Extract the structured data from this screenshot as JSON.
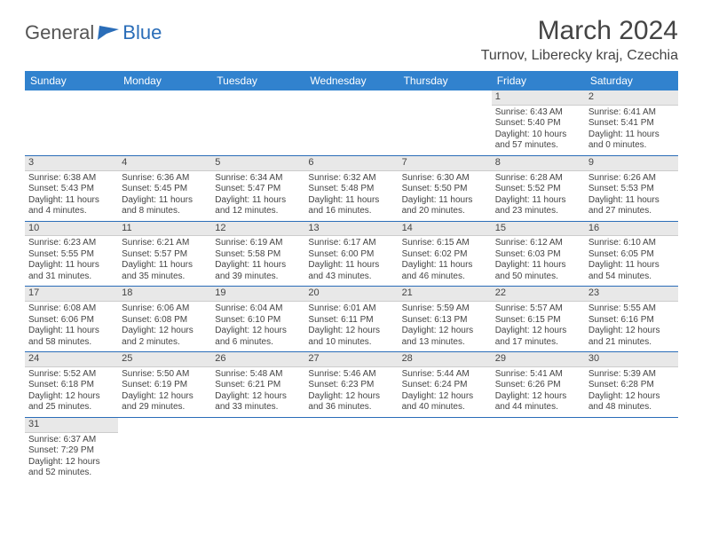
{
  "logo": {
    "general": "General",
    "blue": "Blue"
  },
  "title": "March 2024",
  "location": "Turnov, Liberecky kraj, Czechia",
  "headers": [
    "Sunday",
    "Monday",
    "Tuesday",
    "Wednesday",
    "Thursday",
    "Friday",
    "Saturday"
  ],
  "colors": {
    "header_bg": "#3182ce",
    "accent": "#2a6db8",
    "daynum_bg": "#e8e8e8"
  },
  "weeks": [
    [
      null,
      null,
      null,
      null,
      null,
      {
        "n": "1",
        "sr": "Sunrise: 6:43 AM",
        "ss": "Sunset: 5:40 PM",
        "dl": "Daylight: 10 hours and 57 minutes."
      },
      {
        "n": "2",
        "sr": "Sunrise: 6:41 AM",
        "ss": "Sunset: 5:41 PM",
        "dl": "Daylight: 11 hours and 0 minutes."
      }
    ],
    [
      {
        "n": "3",
        "sr": "Sunrise: 6:38 AM",
        "ss": "Sunset: 5:43 PM",
        "dl": "Daylight: 11 hours and 4 minutes."
      },
      {
        "n": "4",
        "sr": "Sunrise: 6:36 AM",
        "ss": "Sunset: 5:45 PM",
        "dl": "Daylight: 11 hours and 8 minutes."
      },
      {
        "n": "5",
        "sr": "Sunrise: 6:34 AM",
        "ss": "Sunset: 5:47 PM",
        "dl": "Daylight: 11 hours and 12 minutes."
      },
      {
        "n": "6",
        "sr": "Sunrise: 6:32 AM",
        "ss": "Sunset: 5:48 PM",
        "dl": "Daylight: 11 hours and 16 minutes."
      },
      {
        "n": "7",
        "sr": "Sunrise: 6:30 AM",
        "ss": "Sunset: 5:50 PM",
        "dl": "Daylight: 11 hours and 20 minutes."
      },
      {
        "n": "8",
        "sr": "Sunrise: 6:28 AM",
        "ss": "Sunset: 5:52 PM",
        "dl": "Daylight: 11 hours and 23 minutes."
      },
      {
        "n": "9",
        "sr": "Sunrise: 6:26 AM",
        "ss": "Sunset: 5:53 PM",
        "dl": "Daylight: 11 hours and 27 minutes."
      }
    ],
    [
      {
        "n": "10",
        "sr": "Sunrise: 6:23 AM",
        "ss": "Sunset: 5:55 PM",
        "dl": "Daylight: 11 hours and 31 minutes."
      },
      {
        "n": "11",
        "sr": "Sunrise: 6:21 AM",
        "ss": "Sunset: 5:57 PM",
        "dl": "Daylight: 11 hours and 35 minutes."
      },
      {
        "n": "12",
        "sr": "Sunrise: 6:19 AM",
        "ss": "Sunset: 5:58 PM",
        "dl": "Daylight: 11 hours and 39 minutes."
      },
      {
        "n": "13",
        "sr": "Sunrise: 6:17 AM",
        "ss": "Sunset: 6:00 PM",
        "dl": "Daylight: 11 hours and 43 minutes."
      },
      {
        "n": "14",
        "sr": "Sunrise: 6:15 AM",
        "ss": "Sunset: 6:02 PM",
        "dl": "Daylight: 11 hours and 46 minutes."
      },
      {
        "n": "15",
        "sr": "Sunrise: 6:12 AM",
        "ss": "Sunset: 6:03 PM",
        "dl": "Daylight: 11 hours and 50 minutes."
      },
      {
        "n": "16",
        "sr": "Sunrise: 6:10 AM",
        "ss": "Sunset: 6:05 PM",
        "dl": "Daylight: 11 hours and 54 minutes."
      }
    ],
    [
      {
        "n": "17",
        "sr": "Sunrise: 6:08 AM",
        "ss": "Sunset: 6:06 PM",
        "dl": "Daylight: 11 hours and 58 minutes."
      },
      {
        "n": "18",
        "sr": "Sunrise: 6:06 AM",
        "ss": "Sunset: 6:08 PM",
        "dl": "Daylight: 12 hours and 2 minutes."
      },
      {
        "n": "19",
        "sr": "Sunrise: 6:04 AM",
        "ss": "Sunset: 6:10 PM",
        "dl": "Daylight: 12 hours and 6 minutes."
      },
      {
        "n": "20",
        "sr": "Sunrise: 6:01 AM",
        "ss": "Sunset: 6:11 PM",
        "dl": "Daylight: 12 hours and 10 minutes."
      },
      {
        "n": "21",
        "sr": "Sunrise: 5:59 AM",
        "ss": "Sunset: 6:13 PM",
        "dl": "Daylight: 12 hours and 13 minutes."
      },
      {
        "n": "22",
        "sr": "Sunrise: 5:57 AM",
        "ss": "Sunset: 6:15 PM",
        "dl": "Daylight: 12 hours and 17 minutes."
      },
      {
        "n": "23",
        "sr": "Sunrise: 5:55 AM",
        "ss": "Sunset: 6:16 PM",
        "dl": "Daylight: 12 hours and 21 minutes."
      }
    ],
    [
      {
        "n": "24",
        "sr": "Sunrise: 5:52 AM",
        "ss": "Sunset: 6:18 PM",
        "dl": "Daylight: 12 hours and 25 minutes."
      },
      {
        "n": "25",
        "sr": "Sunrise: 5:50 AM",
        "ss": "Sunset: 6:19 PM",
        "dl": "Daylight: 12 hours and 29 minutes."
      },
      {
        "n": "26",
        "sr": "Sunrise: 5:48 AM",
        "ss": "Sunset: 6:21 PM",
        "dl": "Daylight: 12 hours and 33 minutes."
      },
      {
        "n": "27",
        "sr": "Sunrise: 5:46 AM",
        "ss": "Sunset: 6:23 PM",
        "dl": "Daylight: 12 hours and 36 minutes."
      },
      {
        "n": "28",
        "sr": "Sunrise: 5:44 AM",
        "ss": "Sunset: 6:24 PM",
        "dl": "Daylight: 12 hours and 40 minutes."
      },
      {
        "n": "29",
        "sr": "Sunrise: 5:41 AM",
        "ss": "Sunset: 6:26 PM",
        "dl": "Daylight: 12 hours and 44 minutes."
      },
      {
        "n": "30",
        "sr": "Sunrise: 5:39 AM",
        "ss": "Sunset: 6:28 PM",
        "dl": "Daylight: 12 hours and 48 minutes."
      }
    ],
    [
      {
        "n": "31",
        "sr": "Sunrise: 6:37 AM",
        "ss": "Sunset: 7:29 PM",
        "dl": "Daylight: 12 hours and 52 minutes."
      },
      null,
      null,
      null,
      null,
      null,
      null
    ]
  ]
}
